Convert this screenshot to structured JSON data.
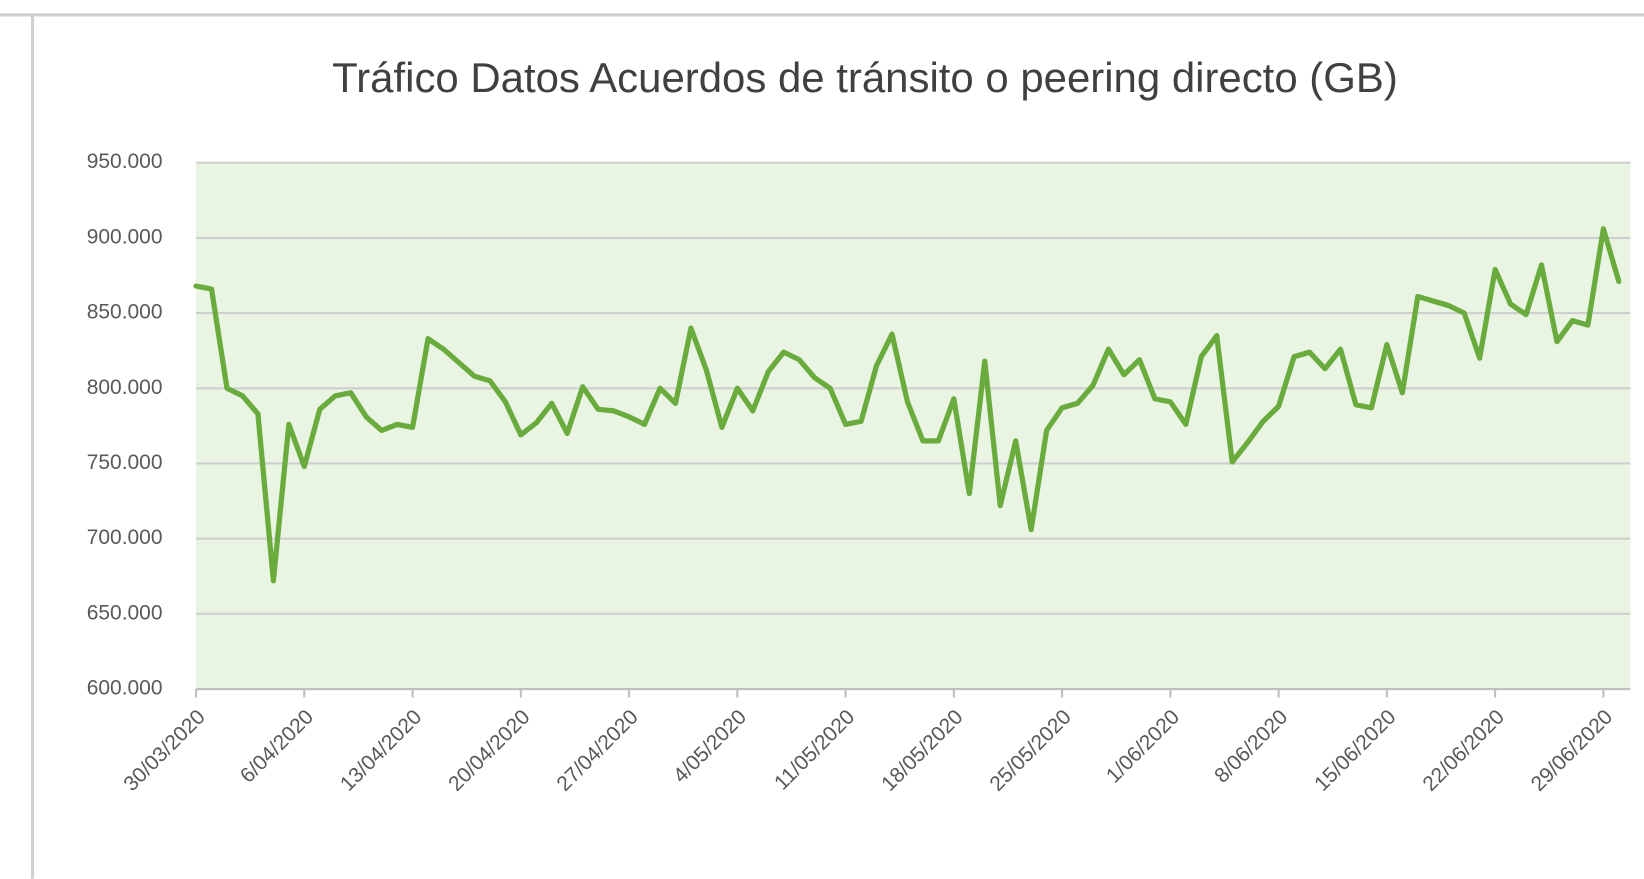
{
  "chart_data": {
    "type": "line",
    "title": "Tráfico Datos  Acuerdos de tránsito o peering directo (GB)",
    "categories": [
      "30/03/2020",
      null,
      null,
      null,
      null,
      null,
      null,
      "6/04/2020",
      null,
      null,
      null,
      null,
      null,
      null,
      "13/04/2020",
      null,
      null,
      null,
      null,
      null,
      null,
      "20/04/2020",
      null,
      null,
      null,
      null,
      null,
      null,
      "27/04/2020",
      null,
      null,
      null,
      null,
      null,
      null,
      "4/05/2020",
      null,
      null,
      null,
      null,
      null,
      null,
      "11/05/2020",
      null,
      null,
      null,
      null,
      null,
      null,
      "18/05/2020",
      null,
      null,
      null,
      null,
      null,
      null,
      "25/05/2020",
      null,
      null,
      null,
      null,
      null,
      null,
      "1/06/2020",
      null,
      null,
      null,
      null,
      null,
      null,
      "8/06/2020",
      null,
      null,
      null,
      null,
      null,
      null,
      "15/06/2020",
      null,
      null,
      null,
      null,
      null,
      null,
      "22/06/2020",
      null,
      null,
      null,
      null,
      null,
      null,
      "29/06/2020",
      null
    ],
    "values": [
      868000,
      866000,
      800000,
      795000,
      783000,
      672000,
      776000,
      748000,
      786000,
      795000,
      797000,
      781000,
      772000,
      776000,
      774000,
      833000,
      826000,
      817000,
      808000,
      805000,
      791000,
      769000,
      777000,
      790000,
      770000,
      801000,
      786000,
      785000,
      781000,
      776000,
      800000,
      790000,
      840000,
      812000,
      774000,
      800000,
      785000,
      811000,
      824000,
      819000,
      807000,
      800000,
      776000,
      778000,
      815000,
      836000,
      791000,
      765000,
      765000,
      793000,
      730000,
      818000,
      722000,
      765000,
      706000,
      772000,
      787000,
      790000,
      802000,
      826000,
      809000,
      819000,
      793000,
      791000,
      776000,
      821000,
      835000,
      751000,
      764000,
      778000,
      788000,
      821000,
      824000,
      813000,
      826000,
      789000,
      787000,
      829000,
      797000,
      861000,
      858000,
      855000,
      850000,
      820000,
      879000,
      856000,
      849000,
      882000,
      831000,
      845000,
      842000,
      906000,
      871000
    ],
    "color": "#6aab3e",
    "ylim": [
      600000,
      950000
    ],
    "yticks": [
      {
        "value": 600000,
        "label": "600.000"
      },
      {
        "value": 650000,
        "label": "650.000"
      },
      {
        "value": 700000,
        "label": "700.000"
      },
      {
        "value": 750000,
        "label": "750.000"
      },
      {
        "value": 800000,
        "label": "800.000"
      },
      {
        "value": 850000,
        "label": "850.000"
      },
      {
        "value": 900000,
        "label": "900.000"
      },
      {
        "value": 950000,
        "label": "950.000"
      }
    ],
    "grid": true
  }
}
